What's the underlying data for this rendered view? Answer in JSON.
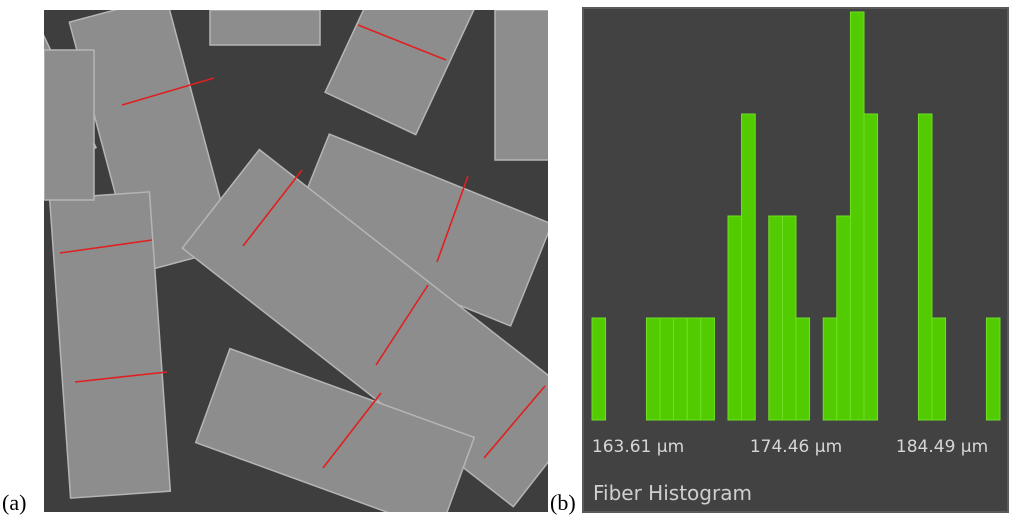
{
  "panel_labels": [
    "(a)",
    "(b)"
  ],
  "chart_data": {
    "type": "histogram",
    "title": "Fiber Histogram",
    "bins": [
      160.45,
      161.38,
      162.32,
      163.25,
      164.19,
      165.12,
      166.05,
      166.99,
      167.92,
      168.86,
      169.79,
      170.72,
      171.66,
      172.59,
      173.53,
      174.46,
      175.39,
      176.33,
      177.26,
      178.2,
      179.13,
      180.06,
      181.0,
      181.93,
      182.87,
      183.8,
      184.73,
      185.67,
      186.6,
      187.54,
      188.47
    ],
    "values": [
      1,
      0,
      0,
      0,
      1,
      1,
      1,
      1,
      1,
      0,
      2,
      3,
      0,
      2,
      2,
      1,
      0,
      1,
      2,
      4,
      3,
      0,
      0,
      0,
      3,
      1,
      0,
      0,
      0,
      1
    ],
    "color": "#52cc00",
    "xlim": [
      160.45,
      188.47
    ],
    "xticks": [
      {
        "value": 163.61,
        "label": "163.61 μm"
      },
      {
        "value": 174.46,
        "label": "174.46 μm"
      },
      {
        "value": 184.49,
        "label": "184.49 μm"
      }
    ],
    "ylim": [
      0,
      4
    ],
    "grid": false
  }
}
